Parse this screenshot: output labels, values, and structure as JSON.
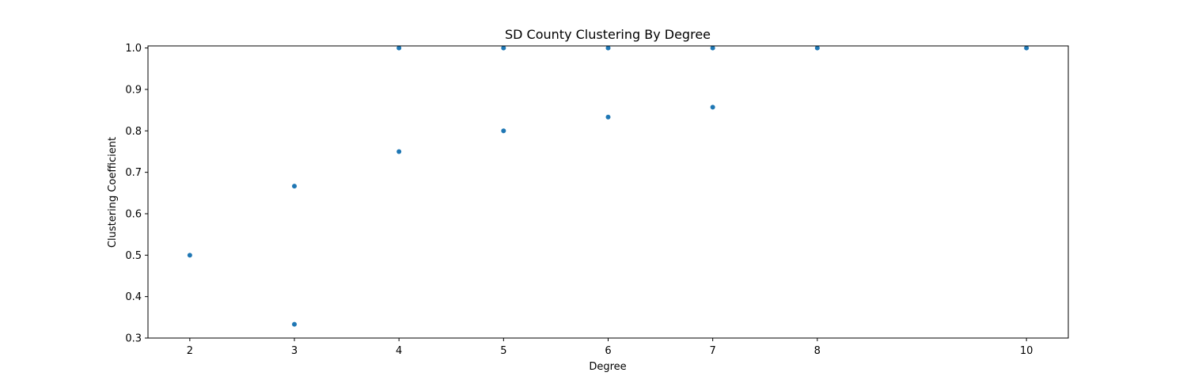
{
  "chart_data": {
    "type": "scatter",
    "title": "SD County Clustering By Degree",
    "xlabel": "Degree",
    "ylabel": "Clustering Coefficient",
    "xlim": [
      1.6,
      10.4
    ],
    "ylim": [
      0.3,
      1.005
    ],
    "xticks": [
      2,
      3,
      4,
      5,
      6,
      7,
      8,
      10
    ],
    "yticks": [
      0.3,
      0.4,
      0.5,
      0.6,
      0.7,
      0.8,
      0.9,
      1.0
    ],
    "ytick_labels": [
      "0.3",
      "0.4",
      "0.5",
      "0.6",
      "0.7",
      "0.8",
      "0.9",
      "1.0"
    ],
    "grid": false,
    "color": "#1f77b4",
    "points": [
      {
        "x": 2,
        "y": 0.5
      },
      {
        "x": 3,
        "y": 0.6667
      },
      {
        "x": 3,
        "y": 0.3333
      },
      {
        "x": 4,
        "y": 1.0
      },
      {
        "x": 4,
        "y": 0.75
      },
      {
        "x": 5,
        "y": 1.0
      },
      {
        "x": 5,
        "y": 0.8
      },
      {
        "x": 6,
        "y": 1.0
      },
      {
        "x": 6,
        "y": 0.8333
      },
      {
        "x": 7,
        "y": 1.0
      },
      {
        "x": 7,
        "y": 0.8571
      },
      {
        "x": 8,
        "y": 1.0
      },
      {
        "x": 10,
        "y": 1.0
      }
    ]
  }
}
